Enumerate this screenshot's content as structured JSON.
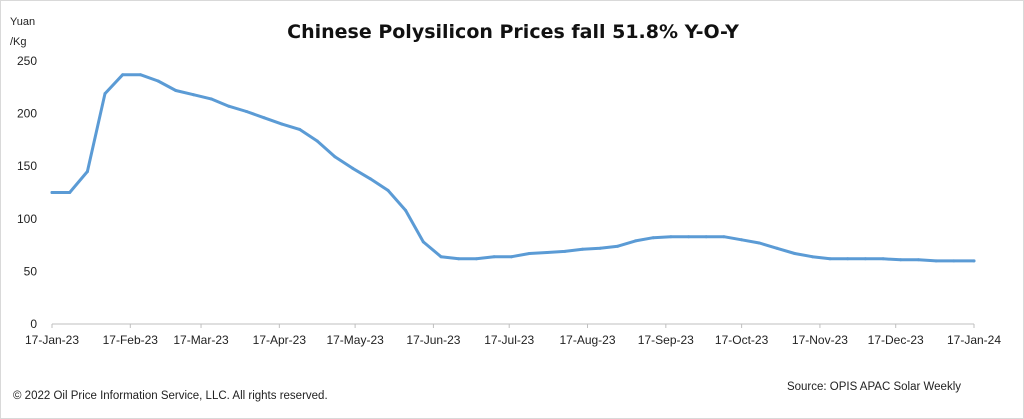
{
  "chart_data": {
    "type": "line",
    "title": "Chinese Polysilicon Prices fall 51.8% Y-O-Y",
    "ylabel": "Yuan /Kg",
    "ylabel_lines": [
      "Yuan",
      "/Kg"
    ],
    "xlabel": "",
    "ylim": [
      0,
      250
    ],
    "yticks": [
      0,
      50,
      100,
      150,
      200,
      250
    ],
    "xticks": [
      "17-Jan-23",
      "17-Feb-23",
      "17-Mar-23",
      "17-Apr-23",
      "17-May-23",
      "17-Jun-23",
      "17-Jul-23",
      "17-Aug-23",
      "17-Sep-23",
      "17-Oct-23",
      "17-Nov-23",
      "17-Dec-23",
      "17-Jan-24"
    ],
    "grid": false,
    "color": "#5b9bd5",
    "series": [
      {
        "x": [
          "2023-01-17",
          "2023-01-24",
          "2023-01-31",
          "2023-02-07",
          "2023-02-14",
          "2023-02-21",
          "2023-02-28",
          "2023-03-07",
          "2023-03-14",
          "2023-03-21",
          "2023-03-28",
          "2023-04-04",
          "2023-04-11",
          "2023-04-18",
          "2023-04-25",
          "2023-05-02",
          "2023-05-09",
          "2023-05-16",
          "2023-05-23",
          "2023-05-30",
          "2023-06-06",
          "2023-06-13",
          "2023-06-20",
          "2023-06-27",
          "2023-07-04",
          "2023-07-11",
          "2023-07-18",
          "2023-07-25",
          "2023-08-01",
          "2023-08-08",
          "2023-08-15",
          "2023-08-22",
          "2023-08-29",
          "2023-09-05",
          "2023-09-12",
          "2023-09-19",
          "2023-09-26",
          "2023-10-03",
          "2023-10-10",
          "2023-10-17",
          "2023-10-24",
          "2023-10-31",
          "2023-11-07",
          "2023-11-14",
          "2023-11-21",
          "2023-11-28",
          "2023-12-05",
          "2023-12-12",
          "2023-12-19",
          "2023-12-26",
          "2024-01-02",
          "2024-01-09",
          "2024-01-17"
        ],
        "y": [
          125,
          125,
          145,
          219,
          237,
          237,
          231,
          222,
          218,
          214,
          207,
          202,
          196,
          190,
          185,
          174,
          159,
          148,
          138,
          127,
          108,
          78,
          64,
          62,
          62,
          64,
          64,
          67,
          68,
          69,
          71,
          72,
          74,
          79,
          82,
          83,
          83,
          83,
          83,
          80,
          77,
          72,
          67,
          64,
          62,
          62,
          62,
          62,
          61,
          61,
          60,
          60,
          60
        ]
      }
    ]
  },
  "footer": {
    "copyright": "© 2022 Oil Price Information Service, LLC. All rights reserved.",
    "source": "Source: OPIS APAC Solar Weekly"
  }
}
